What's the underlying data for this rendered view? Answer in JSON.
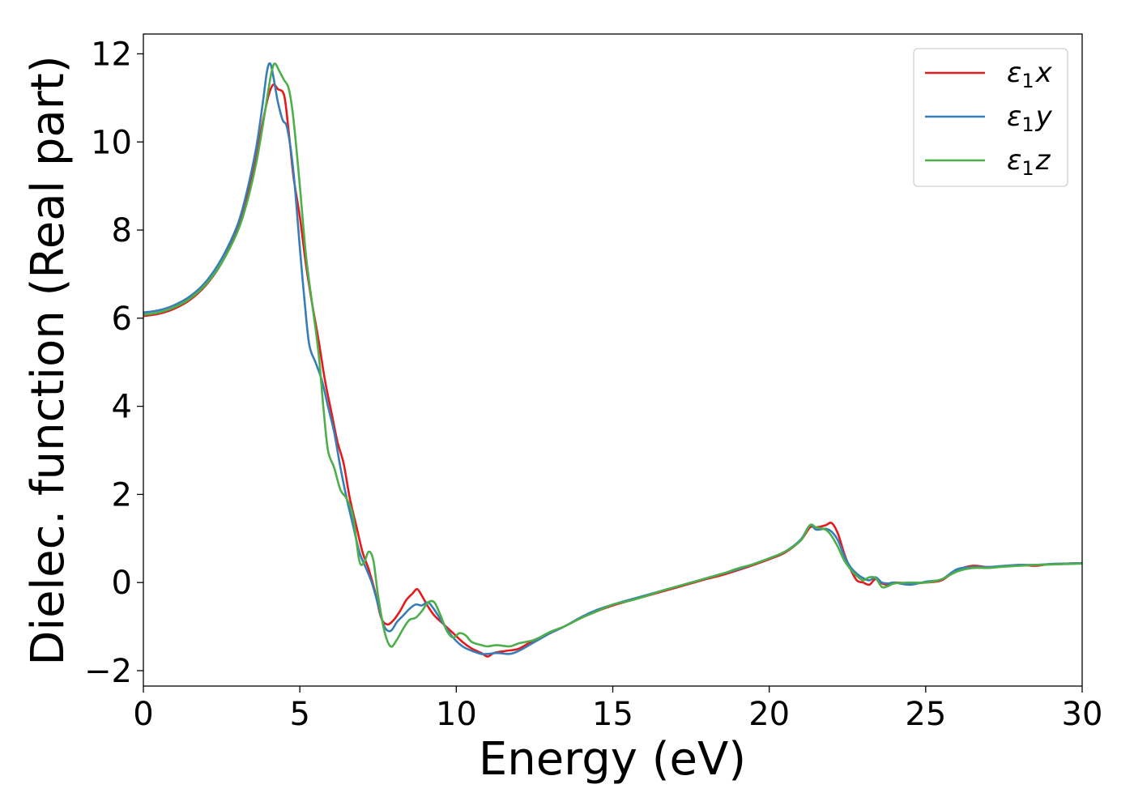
{
  "chart_data": {
    "type": "line",
    "title": "",
    "xlabel": "Energy (eV)",
    "ylabel": "Dielec. function (Real part)",
    "xlim": [
      0,
      30
    ],
    "ylim": [
      -2.35,
      12.45
    ],
    "grid": false,
    "legend_placement": "top-right",
    "xticks": [
      0,
      5,
      10,
      15,
      20,
      25,
      30
    ],
    "xtick_labels": [
      "0",
      "5",
      "10",
      "15",
      "20",
      "25",
      "30"
    ],
    "yticks": [
      -2,
      0,
      2,
      4,
      6,
      8,
      10,
      12
    ],
    "ytick_labels": [
      "−2",
      "0",
      "2",
      "4",
      "6",
      "8",
      "10",
      "12"
    ],
    "series": [
      {
        "name": "ε1x",
        "legend": {
          "symbol": "ε",
          "sub": "1",
          "var": "x"
        },
        "color": "#e41a1c",
        "points": [
          [
            0,
            6.05
          ],
          [
            0.5,
            6.1
          ],
          [
            1,
            6.22
          ],
          [
            1.5,
            6.42
          ],
          [
            2,
            6.75
          ],
          [
            2.5,
            7.25
          ],
          [
            3,
            8.0
          ],
          [
            3.3,
            8.7
          ],
          [
            3.6,
            9.6
          ],
          [
            3.8,
            10.4
          ],
          [
            4.0,
            11.05
          ],
          [
            4.15,
            11.3
          ],
          [
            4.3,
            11.2
          ],
          [
            4.5,
            11.05
          ],
          [
            4.65,
            10.2
          ],
          [
            4.8,
            9.2
          ],
          [
            5.0,
            8.3
          ],
          [
            5.2,
            7.2
          ],
          [
            5.4,
            6.3
          ],
          [
            5.6,
            5.5
          ],
          [
            5.8,
            4.6
          ],
          [
            6.0,
            3.9
          ],
          [
            6.2,
            3.2
          ],
          [
            6.4,
            2.7
          ],
          [
            6.6,
            1.9
          ],
          [
            6.8,
            1.3
          ],
          [
            7.0,
            0.7
          ],
          [
            7.2,
            0.3
          ],
          [
            7.4,
            -0.2
          ],
          [
            7.6,
            -0.8
          ],
          [
            7.8,
            -0.95
          ],
          [
            8.0,
            -0.85
          ],
          [
            8.2,
            -0.65
          ],
          [
            8.4,
            -0.4
          ],
          [
            8.6,
            -0.25
          ],
          [
            8.75,
            -0.15
          ],
          [
            8.9,
            -0.3
          ],
          [
            9.1,
            -0.55
          ],
          [
            9.3,
            -0.75
          ],
          [
            9.6,
            -0.95
          ],
          [
            9.9,
            -1.15
          ],
          [
            10.2,
            -1.35
          ],
          [
            10.5,
            -1.5
          ],
          [
            10.8,
            -1.6
          ],
          [
            11.0,
            -1.68
          ],
          [
            11.2,
            -1.6
          ],
          [
            11.6,
            -1.55
          ],
          [
            12.0,
            -1.5
          ],
          [
            12.5,
            -1.3
          ],
          [
            13.0,
            -1.15
          ],
          [
            13.5,
            -0.98
          ],
          [
            14.0,
            -0.8
          ],
          [
            14.5,
            -0.65
          ],
          [
            15.0,
            -0.52
          ],
          [
            15.5,
            -0.42
          ],
          [
            16.0,
            -0.32
          ],
          [
            16.5,
            -0.22
          ],
          [
            17.0,
            -0.12
          ],
          [
            17.5,
            -0.02
          ],
          [
            18.0,
            0.08
          ],
          [
            18.5,
            0.17
          ],
          [
            19.0,
            0.28
          ],
          [
            19.5,
            0.4
          ],
          [
            20.0,
            0.53
          ],
          [
            20.5,
            0.68
          ],
          [
            21.0,
            0.95
          ],
          [
            21.3,
            1.25
          ],
          [
            21.5,
            1.25
          ],
          [
            21.8,
            1.3
          ],
          [
            22.0,
            1.35
          ],
          [
            22.2,
            1.1
          ],
          [
            22.4,
            0.65
          ],
          [
            22.6,
            0.3
          ],
          [
            22.8,
            0.05
          ],
          [
            23.0,
            0.0
          ],
          [
            23.2,
            -0.05
          ],
          [
            23.4,
            0.08
          ],
          [
            23.6,
            -0.02
          ],
          [
            23.8,
            -0.05
          ],
          [
            24.0,
            0.0
          ],
          [
            24.5,
            -0.02
          ],
          [
            25.0,
            0.0
          ],
          [
            25.5,
            0.05
          ],
          [
            26.0,
            0.28
          ],
          [
            26.5,
            0.38
          ],
          [
            27.0,
            0.35
          ],
          [
            27.5,
            0.37
          ],
          [
            28.0,
            0.4
          ],
          [
            28.5,
            0.38
          ],
          [
            29.0,
            0.42
          ],
          [
            29.5,
            0.43
          ],
          [
            30.0,
            0.44
          ]
        ]
      },
      {
        "name": "ε1y",
        "legend": {
          "symbol": "ε",
          "sub": "1",
          "var": "y"
        },
        "color": "#377eb8",
        "points": [
          [
            0,
            6.13
          ],
          [
            0.5,
            6.18
          ],
          [
            1,
            6.3
          ],
          [
            1.5,
            6.5
          ],
          [
            2,
            6.83
          ],
          [
            2.5,
            7.35
          ],
          [
            3,
            8.1
          ],
          [
            3.3,
            8.85
          ],
          [
            3.6,
            9.85
          ],
          [
            3.8,
            10.8
          ],
          [
            3.95,
            11.6
          ],
          [
            4.05,
            11.78
          ],
          [
            4.15,
            11.5
          ],
          [
            4.3,
            10.9
          ],
          [
            4.45,
            10.5
          ],
          [
            4.6,
            10.3
          ],
          [
            4.8,
            9.3
          ],
          [
            5.0,
            7.6
          ],
          [
            5.15,
            6.4
          ],
          [
            5.3,
            5.4
          ],
          [
            5.5,
            5.0
          ],
          [
            5.7,
            4.6
          ],
          [
            5.9,
            4.0
          ],
          [
            6.1,
            3.4
          ],
          [
            6.3,
            2.6
          ],
          [
            6.5,
            1.9
          ],
          [
            6.7,
            1.3
          ],
          [
            6.9,
            0.7
          ],
          [
            7.1,
            0.35
          ],
          [
            7.3,
            0.0
          ],
          [
            7.5,
            -0.5
          ],
          [
            7.7,
            -1.0
          ],
          [
            7.9,
            -1.1
          ],
          [
            8.1,
            -0.9
          ],
          [
            8.3,
            -0.75
          ],
          [
            8.5,
            -0.6
          ],
          [
            8.7,
            -0.5
          ],
          [
            8.9,
            -0.52
          ],
          [
            9.1,
            -0.45
          ],
          [
            9.3,
            -0.62
          ],
          [
            9.6,
            -0.95
          ],
          [
            9.9,
            -1.25
          ],
          [
            10.2,
            -1.45
          ],
          [
            10.5,
            -1.55
          ],
          [
            10.8,
            -1.62
          ],
          [
            11.0,
            -1.62
          ],
          [
            11.3,
            -1.6
          ],
          [
            11.7,
            -1.62
          ],
          [
            12.0,
            -1.55
          ],
          [
            12.5,
            -1.35
          ],
          [
            13.0,
            -1.15
          ],
          [
            13.5,
            -0.98
          ],
          [
            14.0,
            -0.78
          ],
          [
            14.5,
            -0.62
          ],
          [
            15.0,
            -0.5
          ],
          [
            15.5,
            -0.4
          ],
          [
            16.0,
            -0.3
          ],
          [
            16.5,
            -0.2
          ],
          [
            17.0,
            -0.1
          ],
          [
            17.5,
            0.0
          ],
          [
            18.0,
            0.1
          ],
          [
            18.5,
            0.2
          ],
          [
            19.0,
            0.3
          ],
          [
            19.5,
            0.42
          ],
          [
            20.0,
            0.55
          ],
          [
            20.5,
            0.7
          ],
          [
            21.0,
            0.97
          ],
          [
            21.3,
            1.3
          ],
          [
            21.5,
            1.2
          ],
          [
            21.8,
            1.22
          ],
          [
            22.0,
            1.15
          ],
          [
            22.2,
            0.95
          ],
          [
            22.4,
            0.6
          ],
          [
            22.6,
            0.35
          ],
          [
            22.8,
            0.2
          ],
          [
            23.0,
            0.1
          ],
          [
            23.2,
            0.05
          ],
          [
            23.4,
            0.12
          ],
          [
            23.6,
            0.0
          ],
          [
            23.8,
            -0.02
          ],
          [
            24.0,
            0.0
          ],
          [
            24.5,
            -0.05
          ],
          [
            25.0,
            0.02
          ],
          [
            25.5,
            0.07
          ],
          [
            26.0,
            0.3
          ],
          [
            26.5,
            0.35
          ],
          [
            27.0,
            0.35
          ],
          [
            27.5,
            0.38
          ],
          [
            28.0,
            0.4
          ],
          [
            28.5,
            0.4
          ],
          [
            29.0,
            0.42
          ],
          [
            29.5,
            0.43
          ],
          [
            30.0,
            0.44
          ]
        ]
      },
      {
        "name": "ε1z",
        "legend": {
          "symbol": "ε",
          "sub": "1",
          "var": "z"
        },
        "color": "#4daf4a",
        "points": [
          [
            0,
            6.08
          ],
          [
            0.5,
            6.13
          ],
          [
            1,
            6.25
          ],
          [
            1.5,
            6.45
          ],
          [
            2,
            6.77
          ],
          [
            2.5,
            7.25
          ],
          [
            3,
            7.95
          ],
          [
            3.3,
            8.6
          ],
          [
            3.6,
            9.5
          ],
          [
            3.8,
            10.3
          ],
          [
            4.0,
            11.2
          ],
          [
            4.1,
            11.6
          ],
          [
            4.2,
            11.78
          ],
          [
            4.35,
            11.6
          ],
          [
            4.5,
            11.4
          ],
          [
            4.65,
            11.2
          ],
          [
            4.8,
            10.5
          ],
          [
            5.0,
            9.0
          ],
          [
            5.2,
            7.4
          ],
          [
            5.4,
            6.3
          ],
          [
            5.6,
            5.2
          ],
          [
            5.75,
            4.0
          ],
          [
            5.9,
            3.0
          ],
          [
            6.1,
            2.6
          ],
          [
            6.3,
            2.1
          ],
          [
            6.5,
            1.9
          ],
          [
            6.7,
            1.5
          ],
          [
            6.9,
            0.5
          ],
          [
            7.05,
            0.45
          ],
          [
            7.2,
            0.7
          ],
          [
            7.35,
            0.5
          ],
          [
            7.5,
            -0.3
          ],
          [
            7.7,
            -1.1
          ],
          [
            7.9,
            -1.45
          ],
          [
            8.1,
            -1.3
          ],
          [
            8.3,
            -1.05
          ],
          [
            8.5,
            -0.85
          ],
          [
            8.7,
            -0.8
          ],
          [
            8.9,
            -0.65
          ],
          [
            9.1,
            -0.45
          ],
          [
            9.3,
            -0.45
          ],
          [
            9.5,
            -0.75
          ],
          [
            9.7,
            -1.1
          ],
          [
            9.9,
            -1.25
          ],
          [
            10.1,
            -1.15
          ],
          [
            10.3,
            -1.2
          ],
          [
            10.5,
            -1.35
          ],
          [
            10.8,
            -1.42
          ],
          [
            11.0,
            -1.45
          ],
          [
            11.3,
            -1.42
          ],
          [
            11.7,
            -1.45
          ],
          [
            12.0,
            -1.38
          ],
          [
            12.5,
            -1.3
          ],
          [
            13.0,
            -1.12
          ],
          [
            13.5,
            -0.98
          ],
          [
            14.0,
            -0.8
          ],
          [
            14.5,
            -0.65
          ],
          [
            15.0,
            -0.5
          ],
          [
            15.5,
            -0.42
          ],
          [
            16.0,
            -0.32
          ],
          [
            16.5,
            -0.2
          ],
          [
            17.0,
            -0.1
          ],
          [
            17.5,
            0.0
          ],
          [
            18.0,
            0.1
          ],
          [
            18.5,
            0.2
          ],
          [
            19.0,
            0.32
          ],
          [
            19.5,
            0.42
          ],
          [
            20.0,
            0.55
          ],
          [
            20.5,
            0.7
          ],
          [
            21.0,
            0.95
          ],
          [
            21.3,
            1.3
          ],
          [
            21.5,
            1.25
          ],
          [
            21.8,
            1.2
          ],
          [
            22.0,
            1.05
          ],
          [
            22.2,
            0.8
          ],
          [
            22.4,
            0.5
          ],
          [
            22.6,
            0.3
          ],
          [
            22.8,
            0.15
          ],
          [
            23.0,
            0.05
          ],
          [
            23.2,
            0.12
          ],
          [
            23.4,
            0.1
          ],
          [
            23.6,
            -0.1
          ],
          [
            23.8,
            -0.08
          ],
          [
            24.0,
            -0.02
          ],
          [
            24.5,
            0.0
          ],
          [
            25.0,
            0.0
          ],
          [
            25.5,
            0.07
          ],
          [
            26.0,
            0.25
          ],
          [
            26.5,
            0.33
          ],
          [
            27.0,
            0.33
          ],
          [
            27.5,
            0.36
          ],
          [
            28.0,
            0.38
          ],
          [
            28.5,
            0.4
          ],
          [
            29.0,
            0.41
          ],
          [
            29.5,
            0.42
          ],
          [
            30.0,
            0.43
          ]
        ]
      }
    ]
  }
}
